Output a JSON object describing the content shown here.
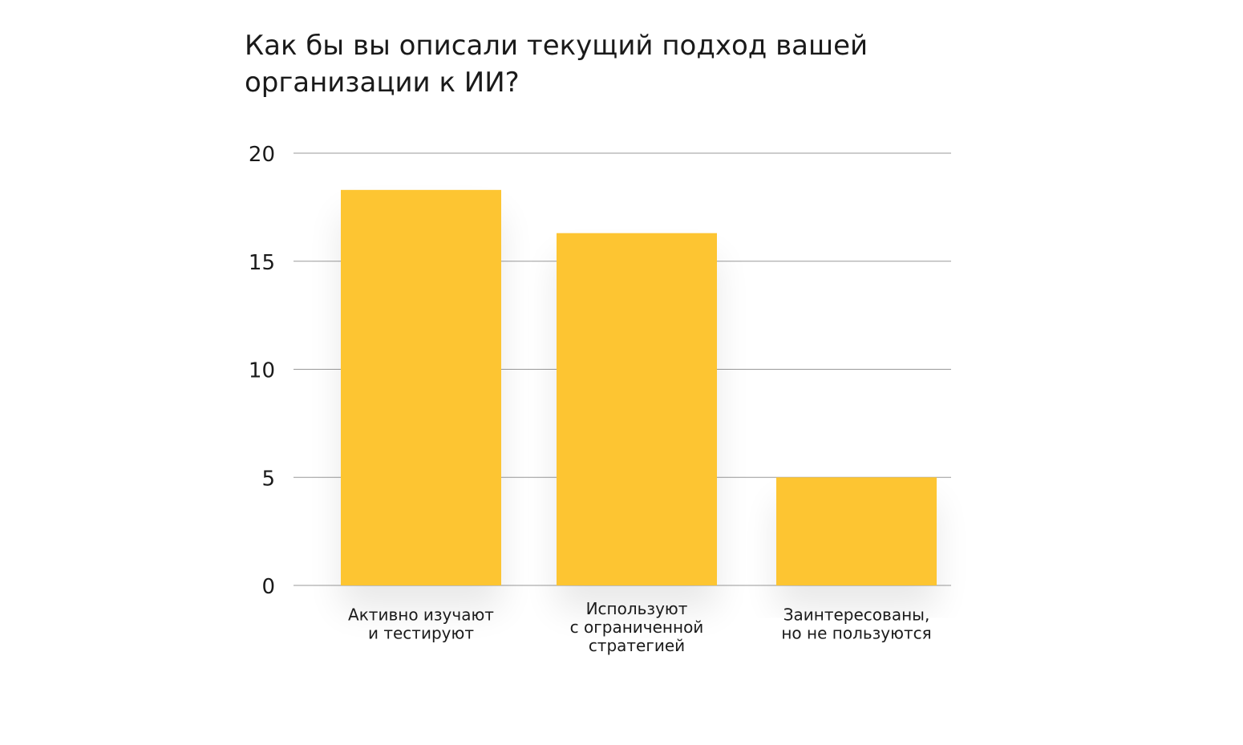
{
  "chart_data": {
    "type": "bar",
    "title": "Как бы вы описали текущий подход вашей\nорганизации к ИИ?",
    "categories": [
      [
        "Активно изучают",
        "и тестируют"
      ],
      [
        "Используют",
        "с ограниченной",
        "стратегией"
      ],
      [
        "Заинтересованы,",
        "но не пользуются"
      ]
    ],
    "values": [
      18.3,
      16.3,
      5
    ],
    "ylim": [
      0,
      20
    ],
    "yticks": [
      "0",
      "5",
      "10",
      "15",
      "20"
    ],
    "xlabel": "",
    "ylabel": "",
    "grid": true,
    "colors": {
      "bar": "#FDC532",
      "grid": "#999999"
    }
  }
}
